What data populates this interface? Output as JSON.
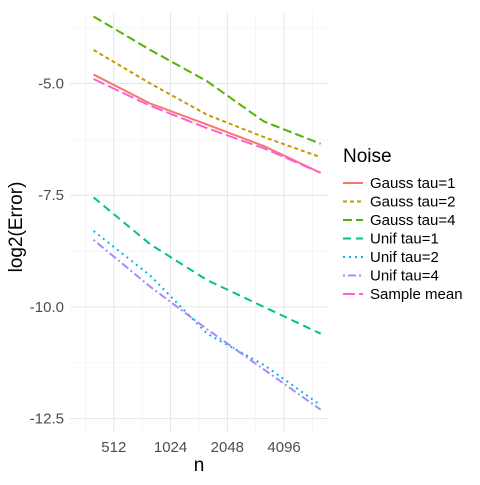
{
  "chart_data": {
    "type": "line",
    "title": "",
    "xlabel": "n",
    "ylabel": "log2(Error)",
    "x_scale": "log2",
    "xlim": [
      300,
      7000
    ],
    "ylim": [
      -12.8,
      -3.4
    ],
    "x_ticks": [
      512,
      1024,
      2048,
      4096
    ],
    "x_tick_labels": [
      "512",
      "1024",
      "2048",
      "4096"
    ],
    "y_ticks": [
      -5.0,
      -7.5,
      -10.0,
      -12.5
    ],
    "y_tick_labels": [
      "-5.0",
      "-7.5",
      "-10.0",
      "-12.5"
    ],
    "grid": true,
    "legend": {
      "title": "Noise",
      "position": "right"
    },
    "x": [
      400,
      800,
      1600,
      3200,
      6400
    ],
    "series": [
      {
        "name": "Gauss tau=1",
        "color": "#F8766D",
        "dash": "solid",
        "values": [
          -4.8,
          -5.45,
          -5.92,
          -6.4,
          -7.0
        ]
      },
      {
        "name": "Gauss tau=2",
        "color": "#C49A00",
        "dash": "dashed",
        "values": [
          -4.25,
          -5.0,
          -5.7,
          -6.2,
          -6.65
        ]
      },
      {
        "name": "Gauss tau=4",
        "color": "#53B400",
        "dash": "longdash",
        "values": [
          -3.5,
          -4.25,
          -4.95,
          -5.85,
          -6.35
        ]
      },
      {
        "name": "Unif tau=1",
        "color": "#00C094",
        "dash": "longdash2",
        "values": [
          -7.55,
          -8.6,
          -9.4,
          -10.0,
          -10.6
        ]
      },
      {
        "name": "Unif tau=2",
        "color": "#00B6EB",
        "dash": "dotted",
        "values": [
          -8.3,
          -9.3,
          -10.6,
          -11.3,
          -12.2
        ]
      },
      {
        "name": "Unif tau=4",
        "color": "#A58AFF",
        "dash": "dotdash",
        "values": [
          -8.5,
          -9.55,
          -10.5,
          -11.4,
          -12.3
        ]
      },
      {
        "name": "Sample mean",
        "color": "#FB61D7",
        "dash": "twodash",
        "values": [
          -4.9,
          -5.5,
          -6.0,
          -6.45,
          -7.0
        ]
      }
    ]
  }
}
